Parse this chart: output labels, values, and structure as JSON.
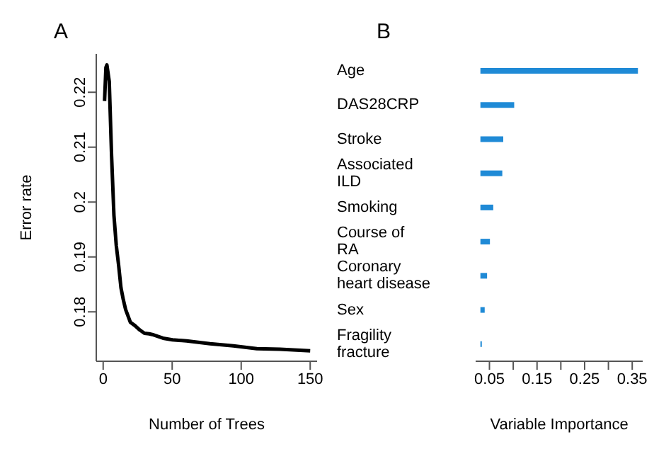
{
  "chart_data": [
    {
      "type": "line",
      "title": "A",
      "xlabel": "Number of Trees",
      "ylabel": "Error rate",
      "x": [
        1,
        2,
        2.7,
        4.4,
        6.1,
        7.8,
        9.5,
        11.2,
        12.9,
        14.6,
        16.3,
        19.7,
        23,
        26.5,
        29.9,
        33.3,
        36.6,
        43.4,
        50.2,
        60.4,
        77.4,
        94.3,
        111.3,
        128,
        150
      ],
      "series": [
        {
          "color": "#000000",
          "values": [
            0.2184,
            0.2245,
            0.225,
            0.222,
            0.2084,
            0.1976,
            0.1921,
            0.1885,
            0.1844,
            0.1822,
            0.1804,
            0.1781,
            0.1775,
            0.1767,
            0.1761,
            0.176,
            0.1758,
            0.1752,
            0.1749,
            0.1747,
            0.1742,
            0.1738,
            0.1733,
            0.1732,
            0.1729
          ]
        }
      ],
      "xlim": [
        -5,
        155
      ],
      "xticks": [
        0,
        50,
        100,
        150
      ],
      "ylim": [
        0.171,
        0.227
      ],
      "yticks": [
        0.18,
        0.19,
        0.2,
        0.21,
        0.22
      ],
      "marker": "none",
      "line_style": "solid",
      "grid": false,
      "legend": false
    },
    {
      "type": "bar",
      "orientation": "horizontal",
      "title": "B",
      "xlabel": "Variable Importance",
      "categories": [
        "Age",
        "DAS28CRP",
        "Stroke",
        "Associated\nILD",
        "Smoking",
        "Course of\nRA",
        "Coronary\nheart disease",
        "Sex",
        "Fragility\nfracture"
      ],
      "base": [
        0.031,
        0.031,
        0.031,
        0.031,
        0.031,
        0.031,
        0.031,
        0.031,
        0.031
      ],
      "values": [
        0.331,
        0.071,
        0.048,
        0.046,
        0.027,
        0.02,
        0.014,
        0.009,
        0.003
      ],
      "color": "#1f8ad6",
      "xlim": [
        0.021,
        0.372
      ],
      "xticks": [
        0.05,
        {
          "value": 0.1,
          "label": null
        },
        0.15,
        {
          "value": 0.2,
          "label": null
        },
        0.25,
        {
          "value": 0.3,
          "label": null
        },
        0.35
      ],
      "grid": false,
      "legend": false
    }
  ]
}
